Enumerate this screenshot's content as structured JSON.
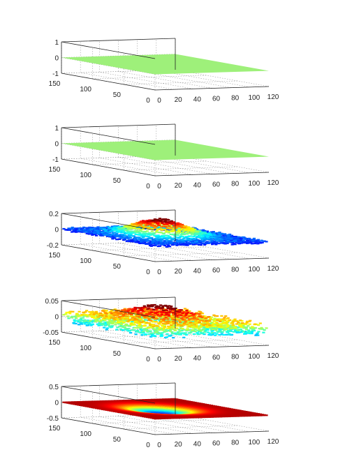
{
  "chart_data": [
    {
      "type": "surface",
      "zlim": [
        -1,
        1
      ],
      "ztick_labels": [
        "1",
        "0",
        "-1"
      ],
      "x_tick_labels": [
        "0",
        "20",
        "40",
        "60",
        "80",
        "100",
        "120"
      ],
      "y_tick_labels": [
        "150",
        "100",
        "50",
        "0"
      ],
      "surface": "flat",
      "surface_color": "#9ef07a",
      "z_value": 0
    },
    {
      "type": "surface",
      "zlim": [
        -1,
        1
      ],
      "ztick_labels": [
        "1",
        "0",
        "-1"
      ],
      "x_tick_labels": [
        "0",
        "20",
        "40",
        "60",
        "80",
        "100",
        "120"
      ],
      "y_tick_labels": [
        "150",
        "100",
        "50",
        "0"
      ],
      "surface": "flat",
      "surface_color": "#9ef07a",
      "z_value": 0
    },
    {
      "type": "surface",
      "zlim": [
        -0.2,
        0.2
      ],
      "ztick_labels": [
        "0.2",
        "0",
        "-0.2"
      ],
      "x_tick_labels": [
        "0",
        "20",
        "40",
        "60",
        "80",
        "100",
        "120"
      ],
      "y_tick_labels": [
        "150",
        "100",
        "50",
        "0"
      ],
      "surface": "noisy-bump",
      "colormap": "jet",
      "bump_peak": 0.2,
      "noise_amplitude": 0.02
    },
    {
      "type": "surface",
      "zlim": [
        -0.05,
        0.05
      ],
      "ztick_labels": [
        "0.05",
        "0",
        "-0.05"
      ],
      "x_tick_labels": [
        "0",
        "20",
        "40",
        "60",
        "80",
        "100",
        "120"
      ],
      "y_tick_labels": [
        "150",
        "100",
        "50",
        "0"
      ],
      "surface": "noisy-bump",
      "colormap": "jet",
      "bump_peak": 0.04,
      "noise_amplitude": 0.02
    },
    {
      "type": "surface",
      "zlim": [
        -0.5,
        0.5
      ],
      "ztick_labels": [
        "0.5",
        "0",
        "-0.5"
      ],
      "x_tick_labels": [
        "0",
        "20",
        "40",
        "60",
        "80",
        "100",
        "120"
      ],
      "y_tick_labels": [
        "150",
        "100",
        "50",
        "0"
      ],
      "surface": "dip",
      "colormap": "jet",
      "dip_min": -0.5
    }
  ]
}
